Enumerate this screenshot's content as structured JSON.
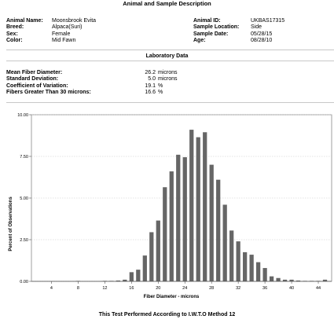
{
  "header": {
    "title": "Animal and Sample Description"
  },
  "animal_left": [
    {
      "label": "Animal Name:",
      "value": "Moonsbrook Evita"
    },
    {
      "label": "Breed:",
      "value": "Alpaca(Suri)"
    },
    {
      "label": "Sex:",
      "value": "Female"
    },
    {
      "label": "Color:",
      "value": "Mid Fawn"
    }
  ],
  "animal_right": [
    {
      "label": "Animal ID:",
      "value": "UKBAS17315"
    },
    {
      "label": "Sample Location:",
      "value": "Side"
    },
    {
      "label": "Sample Date:",
      "value": "05/28/15"
    },
    {
      "label": "Age:",
      "value": "08/28/10"
    }
  ],
  "lab": {
    "title": "Laboratory Data",
    "rows": [
      {
        "label": "Mean Fiber Diameter:",
        "value": "26.2",
        "unit": "microns"
      },
      {
        "label": "Standard Deviation:",
        "value": "5.0",
        "unit": "microns"
      },
      {
        "label": "Coefficient of Variation:",
        "value": "19.1",
        "unit": "%"
      },
      {
        "label": "Fibers Greater Than 30 microns:",
        "value": "16.6",
        "unit": "%"
      }
    ]
  },
  "footer": {
    "text": "This Test Performed According to I.W.T.O Method 12"
  },
  "chart_data": {
    "type": "bar",
    "title": "",
    "xlabel": "Fiber Diameter - microns",
    "ylabel": "Percent of Observations",
    "xlim": [
      1,
      46
    ],
    "ylim": [
      0,
      10
    ],
    "grid": true,
    "xticks": [
      4,
      8,
      12,
      16,
      20,
      24,
      28,
      32,
      36,
      40,
      44
    ],
    "xtick_labels": [
      "4",
      "8",
      "12",
      "16",
      "20",
      "24",
      "28",
      "32",
      "36",
      "40",
      "44"
    ],
    "yticks": [
      0,
      2.5,
      5,
      7.5,
      10
    ],
    "ytick_labels": [
      "0.00",
      "2.50",
      "5.00",
      "7.50",
      "10.00"
    ],
    "bar_color": "#666666",
    "x": [
      2,
      3,
      4,
      5,
      6,
      7,
      8,
      9,
      10,
      11,
      12,
      13,
      14,
      15,
      16,
      17,
      18,
      19,
      20,
      21,
      22,
      23,
      24,
      25,
      26,
      27,
      28,
      29,
      30,
      31,
      32,
      33,
      34,
      35,
      36,
      37,
      38,
      39,
      40,
      41,
      42,
      43,
      44,
      45
    ],
    "values": [
      0,
      0,
      0,
      0,
      0,
      0,
      0.02,
      0,
      0,
      0,
      0.03,
      0.03,
      0.05,
      0.1,
      0.55,
      0.7,
      1.55,
      2.95,
      3.65,
      5.65,
      6.6,
      7.6,
      7.45,
      9.1,
      8.65,
      8.95,
      7.0,
      6.1,
      4.6,
      3.05,
      2.4,
      1.75,
      1.6,
      1.15,
      0.8,
      0.3,
      0.2,
      0.1,
      0.1,
      0.05,
      0.03,
      0.03,
      0.03,
      0.1
    ]
  }
}
